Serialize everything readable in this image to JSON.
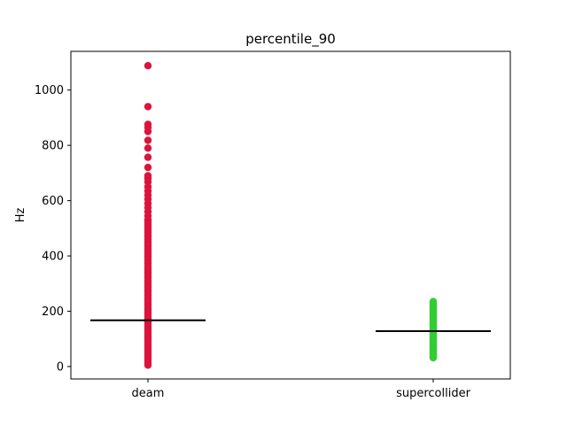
{
  "chart_data": {
    "type": "scatter",
    "title": "percentile_90",
    "xlabel": "",
    "ylabel": "Hz",
    "categories": [
      "deam",
      "supercollider"
    ],
    "ylim": [
      -45,
      1140
    ],
    "yticks": [
      0,
      200,
      400,
      600,
      800,
      1000
    ],
    "grid": false,
    "series": [
      {
        "category": "deam",
        "color": "#dc143c",
        "median": 167,
        "min": 5,
        "max": 1088,
        "outliers": [
          1088,
          940,
          876,
          865,
          850,
          818,
          790,
          757,
          720,
          690,
          680,
          668,
          650,
          635,
          620,
          605,
          590,
          575,
          560,
          545,
          530
        ]
      },
      {
        "category": "supercollider",
        "color": "#32cd32",
        "median": 128,
        "min": 32,
        "max": 235,
        "outliers": []
      }
    ]
  }
}
